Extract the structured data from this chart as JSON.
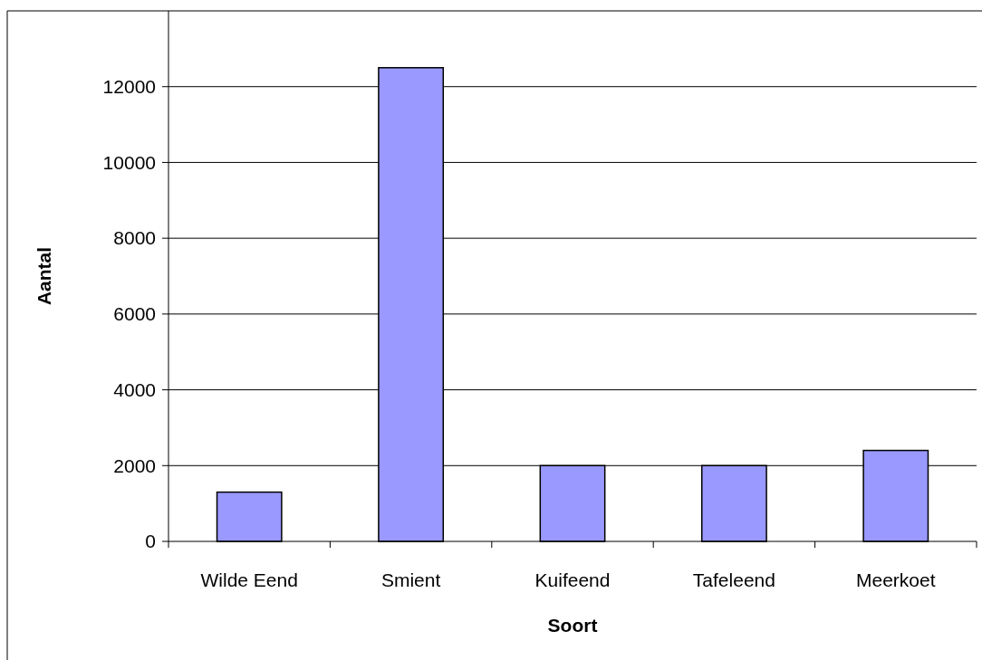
{
  "chart_data": {
    "type": "bar",
    "xlabel": "Soort",
    "ylabel": "Aantal",
    "categories": [
      "Wilde Eend",
      "Smient",
      "Kuifeend",
      "Tafeleend",
      "Meerkoet"
    ],
    "values": [
      1300,
      12500,
      2000,
      2000,
      2400
    ],
    "color": "#9999ff",
    "ylim": [
      0,
      14000
    ],
    "yticks": [
      0,
      2000,
      4000,
      6000,
      8000,
      10000,
      12000
    ],
    "grid": "y"
  }
}
